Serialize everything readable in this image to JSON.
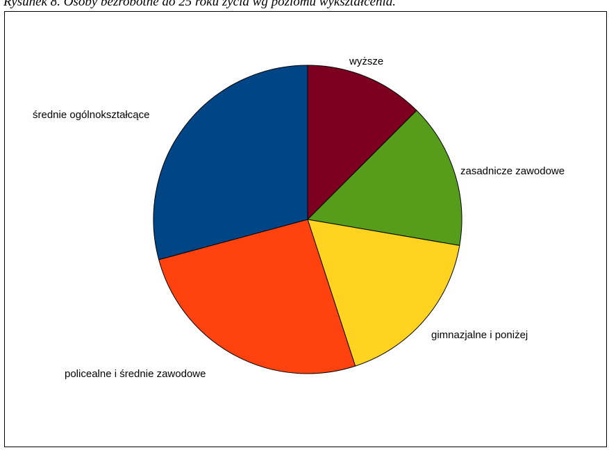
{
  "caption": "Rysunek 8. Osoby bezrobotne do 25 roku życia wg poziomu wykształcenia.",
  "chart_data": {
    "type": "pie",
    "title": "",
    "start_angle_deg": 0,
    "direction": "clockwise",
    "legend": "none",
    "slices": [
      {
        "label": "wyższe",
        "value": 12.5,
        "color": "#7E0021"
      },
      {
        "label": "zasadnicze zawodowe",
        "value": 15.2,
        "color": "#579D1C"
      },
      {
        "label": "gimnazjalne i poniżej",
        "value": 17.3,
        "color": "#FFD320"
      },
      {
        "label": "policealne i średnie zawodowe",
        "value": 25.8,
        "color": "#FF420E"
      },
      {
        "label": "średnie ogólnokształcące",
        "value": 29.2,
        "color": "#004586"
      }
    ]
  }
}
